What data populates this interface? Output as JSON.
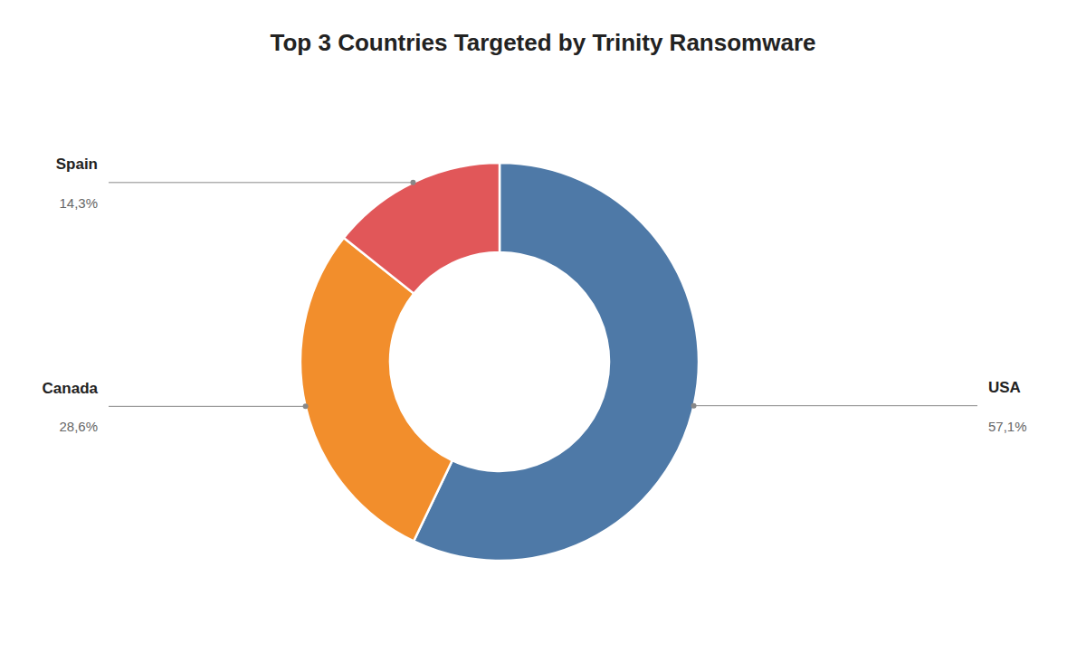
{
  "chart_data": {
    "type": "donut",
    "title": "Top 3 Countries Targeted by Trinity Ransomware",
    "categories": [
      "USA",
      "Canada",
      "Spain"
    ],
    "values": [
      57.1,
      28.6,
      14.3
    ],
    "value_labels": [
      "57,1%",
      "28,6%",
      "14,3%"
    ],
    "data_labels": true
  }
}
